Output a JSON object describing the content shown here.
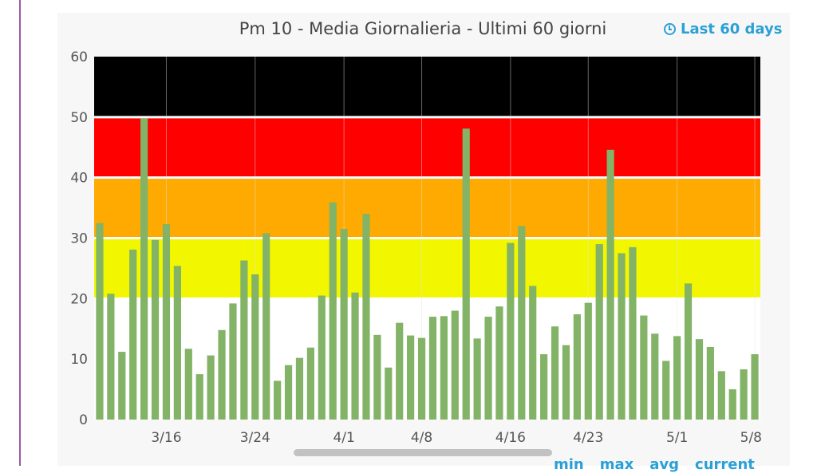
{
  "title": "Pm 10 - Media Giornalieria - Ultimi 60 giorni",
  "time_range": {
    "label": "Last 60 days",
    "icon": "clock-icon"
  },
  "stats_labels": [
    "min",
    "max",
    "avg",
    "current"
  ],
  "colors": {
    "bar": "#82b366",
    "grid": "#e3e3e3",
    "bands": [
      "#ffffff",
      "#f2f700",
      "#ffaa00",
      "#ff0000",
      "#000000"
    ],
    "band_separator": "#ffffff",
    "accent": "#2aa0d6"
  },
  "chart_data": {
    "type": "bar",
    "title": "Pm 10 - Media Giornalieria - Ultimi 60 giorni",
    "xlabel": "",
    "ylabel": "",
    "ylim": [
      0,
      60
    ],
    "y_ticks": [
      0,
      10,
      20,
      30,
      40,
      50,
      60
    ],
    "x_tick_labels": [
      {
        "label": "3/16",
        "index": 6
      },
      {
        "label": "3/24",
        "index": 14
      },
      {
        "label": "4/1",
        "index": 22
      },
      {
        "label": "4/8",
        "index": 29
      },
      {
        "label": "4/16",
        "index": 37
      },
      {
        "label": "4/23",
        "index": 44
      },
      {
        "label": "5/1",
        "index": 52
      },
      {
        "label": "5/8",
        "index": 59
      }
    ],
    "threshold_bands": [
      {
        "from": 0,
        "to": 20,
        "color": "#ffffff"
      },
      {
        "from": 20,
        "to": 30,
        "color": "#f2f700"
      },
      {
        "from": 30,
        "to": 40,
        "color": "#ffaa00"
      },
      {
        "from": 40,
        "to": 50,
        "color": "#ff0000"
      },
      {
        "from": 50,
        "to": 60,
        "color": "#000000"
      }
    ],
    "grid": true,
    "legend": "none",
    "values": [
      32.5,
      20.8,
      11.2,
      28.1,
      49.8,
      29.7,
      32.3,
      25.4,
      11.7,
      7.5,
      10.6,
      14.8,
      19.2,
      26.3,
      24.0,
      30.8,
      6.4,
      9.0,
      10.2,
      11.9,
      20.5,
      35.9,
      31.5,
      21.0,
      34.0,
      14.0,
      8.6,
      16.0,
      13.9,
      13.5,
      17.0,
      17.1,
      18.0,
      48.1,
      13.4,
      17.0,
      18.7,
      29.2,
      32.0,
      22.1,
      10.8,
      15.4,
      12.3,
      17.4,
      19.3,
      29.0,
      44.6,
      27.5,
      28.5,
      17.2,
      14.2,
      9.7,
      13.8,
      22.5,
      13.3,
      12.0,
      8.0,
      5.0,
      8.3,
      10.8
    ]
  }
}
